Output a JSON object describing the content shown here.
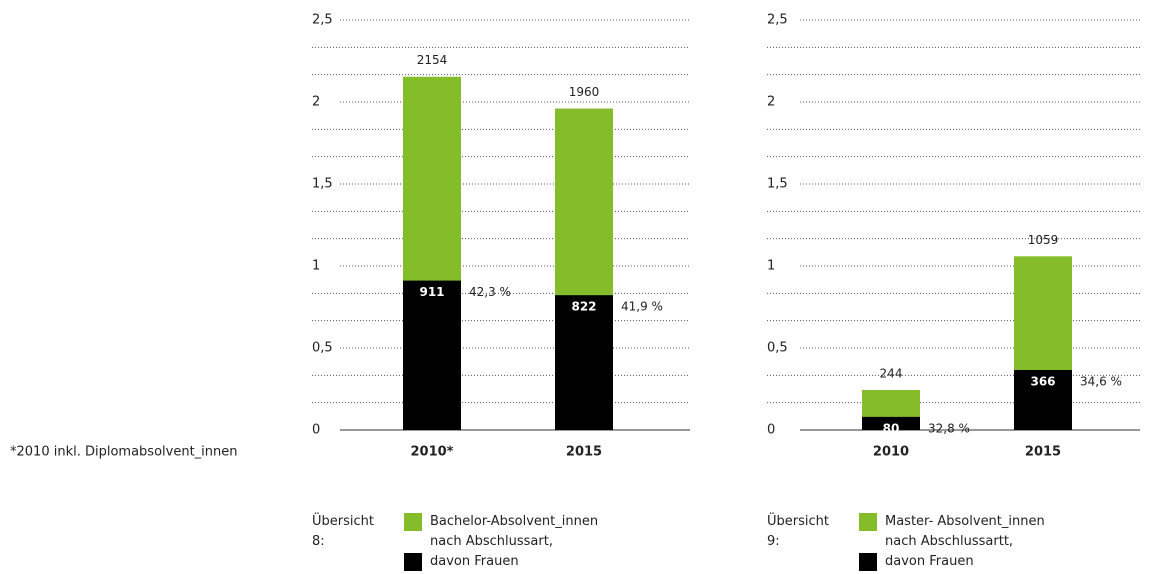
{
  "footnote": "*2010 inkl. Diplomabsolvent_innen",
  "chart_data": [
    {
      "type": "bar",
      "layout": "overlap",
      "legend_title": "Übersicht 8:",
      "categories": [
        "2010*",
        "2015"
      ],
      "series": [
        {
          "name": "Bachelor-Absolvent_innen nach Abschlussart,",
          "color": "#84bc2a",
          "values": [
            2.154,
            1.96
          ],
          "value_labels": [
            "2154",
            "1960"
          ]
        },
        {
          "name": "davon Frauen",
          "color": "#000000",
          "values": [
            0.911,
            0.822
          ],
          "value_labels": [
            "911",
            "822"
          ]
        }
      ],
      "share_labels": [
        "42,3 %",
        "41,9 %"
      ],
      "ylim": [
        0,
        2.5
      ],
      "yticks": [
        0,
        {
          "value": 0.5,
          "label": "0,5"
        },
        1,
        {
          "value": 1.5,
          "label": "1,5"
        },
        2,
        {
          "value": 2.5,
          "label": "2,5"
        }
      ],
      "minor_yticks": [
        0.167,
        0.333,
        0.667,
        0.833,
        1.167,
        1.333,
        1.667,
        1.833,
        2.167,
        2.333
      ],
      "grid": true
    },
    {
      "type": "bar",
      "layout": "overlap",
      "legend_title": "Übersicht 9:",
      "categories": [
        "2010",
        "2015"
      ],
      "series": [
        {
          "name": "Master- Absolvent_innen nach Abschlussartt,",
          "color": "#84bc2a",
          "values": [
            0.244,
            1.059
          ],
          "value_labels": [
            "244",
            "1059"
          ]
        },
        {
          "name": "davon Frauen",
          "color": "#000000",
          "values": [
            0.08,
            0.366
          ],
          "value_labels": [
            "80",
            "366"
          ]
        }
      ],
      "share_labels": [
        "32,8 %",
        "34,6 %"
      ],
      "ylim": [
        0,
        2.5
      ],
      "yticks": [
        0,
        {
          "value": 0.5,
          "label": "0,5"
        },
        1,
        {
          "value": 1.5,
          "label": "1,5"
        },
        2,
        {
          "value": 2.5,
          "label": "2,5"
        }
      ],
      "minor_yticks": [
        0.167,
        0.333,
        0.667,
        0.833,
        1.167,
        1.333,
        1.667,
        1.833,
        2.167,
        2.333
      ],
      "grid": true
    }
  ]
}
